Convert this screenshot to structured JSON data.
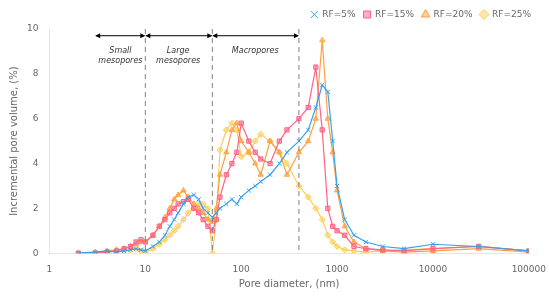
{
  "chart_data": {
    "type": "line",
    "xlabel": "Pore diameter, (nm)",
    "ylabel": "Incremental pore volume, (%)",
    "log": "x",
    "grid": false,
    "legend": "upper right",
    "xlim": [
      1,
      100000
    ],
    "xticks": [
      1,
      10,
      100,
      1000,
      10000,
      100000
    ],
    "ylim": [
      0,
      10
    ],
    "yticks": [
      0,
      2,
      4,
      6,
      8,
      10
    ],
    "x": [
      2,
      3,
      4,
      5,
      6,
      7,
      8,
      9,
      10,
      12,
      14,
      16,
      18,
      20,
      22,
      25,
      28,
      32,
      36,
      40,
      45,
      50,
      55,
      60,
      70,
      80,
      90,
      100,
      120,
      140,
      160,
      200,
      250,
      300,
      400,
      500,
      600,
      700,
      800,
      900,
      1000,
      1200,
      1500,
      2000,
      3000,
      5000,
      10000,
      30000,
      100000
    ],
    "series": [
      {
        "name": "RF=5%",
        "marker": "x",
        "values": [
          0,
          0.05,
          0.1,
          0.05,
          0.1,
          0.15,
          0.2,
          0.15,
          0.1,
          0.3,
          0.5,
          0.8,
          1.2,
          1.5,
          1.8,
          2.2,
          2.5,
          2.6,
          2.4,
          2.0,
          1.8,
          1.6,
          1.8,
          2.0,
          2.2,
          2.4,
          2.2,
          2.5,
          2.8,
          3.0,
          3.2,
          3.5,
          4.0,
          4.5,
          5.0,
          5.5,
          6.5,
          7.5,
          7.2,
          5.0,
          3.0,
          1.5,
          0.8,
          0.5,
          0.3,
          0.2,
          0.4,
          0.3,
          0.1
        ]
      },
      {
        "name": "RF=15%",
        "marker": "square",
        "values": [
          0,
          0.0,
          0.05,
          0.1,
          0.2,
          0.3,
          0.5,
          0.6,
          0.5,
          0.8,
          1.2,
          1.5,
          1.8,
          2.0,
          2.2,
          2.3,
          2.4,
          2.0,
          1.8,
          1.5,
          1.2,
          1.0,
          1.5,
          2.5,
          3.5,
          4.0,
          4.5,
          5.8,
          5.0,
          4.5,
          4.2,
          4.0,
          5.0,
          5.5,
          6.0,
          6.5,
          8.3,
          5.5,
          2.0,
          1.2,
          1.0,
          0.8,
          0.3,
          0.2,
          0.15,
          0.1,
          0.2,
          0.3,
          0.1
        ]
      },
      {
        "name": "RF=20%",
        "marker": "triangle",
        "values": [
          0,
          0.05,
          0.1,
          0.15,
          0.2,
          0.3,
          0.4,
          0.5,
          0.5,
          0.8,
          1.2,
          1.6,
          2.0,
          2.4,
          2.6,
          2.8,
          2.5,
          2.2,
          2.0,
          1.8,
          1.5,
          1.4,
          2.0,
          3.5,
          4.5,
          5.5,
          5.8,
          5.0,
          4.5,
          4.0,
          3.5,
          5.0,
          4.5,
          3.5,
          4.5,
          5.0,
          6.0,
          9.5,
          6.0,
          4.5,
          2.8,
          1.2,
          0.5,
          0.2,
          0.1,
          0.05,
          0.1,
          0.2,
          0.05
        ]
      },
      {
        "name": "RF=25%",
        "marker": "diamond",
        "values": [
          0,
          0.0,
          0.05,
          0.1,
          0.1,
          0.15,
          0.2,
          0.1,
          0.05,
          0.2,
          0.4,
          0.6,
          0.8,
          1.0,
          1.2,
          1.5,
          1.8,
          2.0,
          2.2,
          2.2,
          2.0,
          0.0,
          1.5,
          4.6,
          5.5,
          5.8,
          5.5,
          4.3,
          4.5,
          5.0,
          5.3,
          5.0,
          4.5,
          4.0,
          3.0,
          2.5,
          2.0,
          1.5,
          0.8,
          0.5,
          0.3,
          0.15,
          0.1,
          0.05,
          0.1,
          0.15,
          0.2,
          0.3,
          0.1
        ]
      }
    ],
    "vlines": [
      10,
      50,
      400
    ],
    "arrows": [
      {
        "x": [
          3,
          10
        ],
        "y": 9.7
      },
      {
        "x": [
          10,
          50
        ],
        "y": 9.7
      },
      {
        "x": [
          50,
          400
        ],
        "y": 9.7
      }
    ],
    "annotations": [
      {
        "text": "Small\nmesopores",
        "x": 5.5,
        "y": 9.2
      },
      {
        "text": "Large\nmesopores",
        "x": 22,
        "y": 9.2
      },
      {
        "text": "Macropores",
        "x": 140,
        "y": 9.2
      }
    ]
  }
}
